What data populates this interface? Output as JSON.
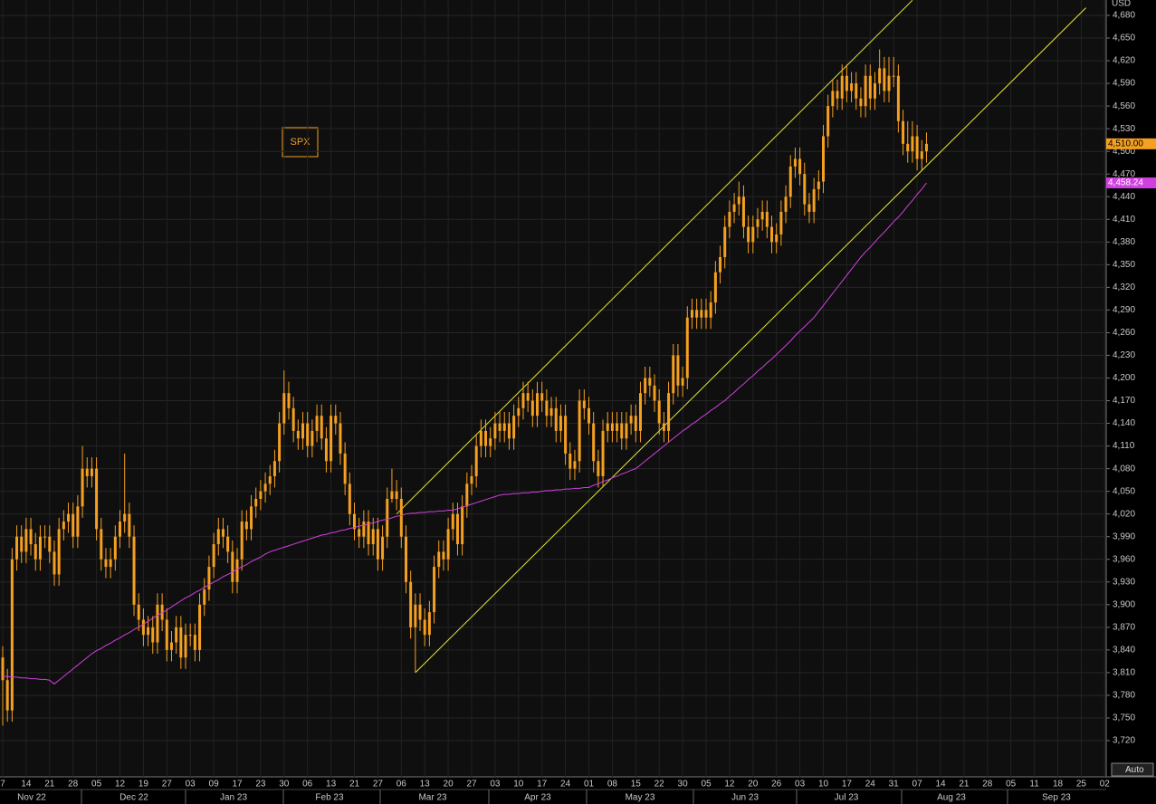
{
  "chart_data": {
    "type": "candlestick",
    "y_unit": "USD",
    "y_unit_label": "USD",
    "button": "Auto",
    "ylim": [
      3696,
      4700
    ],
    "yticks": [
      {
        "value": 3720,
        "label": "3,720"
      },
      {
        "value": 3750,
        "label": "3,750"
      },
      {
        "value": 3780,
        "label": "3,780"
      },
      {
        "value": 3810,
        "label": "3,810"
      },
      {
        "value": 3840,
        "label": "3,840"
      },
      {
        "value": 3870,
        "label": "3,870"
      },
      {
        "value": 3900,
        "label": "3,900"
      },
      {
        "value": 3930,
        "label": "3,930"
      },
      {
        "value": 3960,
        "label": "3,960"
      },
      {
        "value": 3990,
        "label": "3,990"
      },
      {
        "value": 4020,
        "label": "4,020"
      },
      {
        "value": 4050,
        "label": "4,050"
      },
      {
        "value": 4080,
        "label": "4,080"
      },
      {
        "value": 4110,
        "label": "4,110"
      },
      {
        "value": 4140,
        "label": "4,140"
      },
      {
        "value": 4170,
        "label": "4,170"
      },
      {
        "value": 4200,
        "label": "4,200"
      },
      {
        "value": 4230,
        "label": "4,230"
      },
      {
        "value": 4260,
        "label": "4,260"
      },
      {
        "value": 4290,
        "label": "4,290"
      },
      {
        "value": 4320,
        "label": "4,320"
      },
      {
        "value": 4350,
        "label": "4,350"
      },
      {
        "value": 4380,
        "label": "4,380"
      },
      {
        "value": 4410,
        "label": "4,410"
      },
      {
        "value": 4440,
        "label": "4,440"
      },
      {
        "value": 4470,
        "label": "4,470"
      },
      {
        "value": 4500,
        "label": "4,500"
      },
      {
        "value": 4530,
        "label": "4,530"
      },
      {
        "value": 4560,
        "label": "4,560"
      },
      {
        "value": 4590,
        "label": "4,590"
      },
      {
        "value": 4620,
        "label": "4,620"
      },
      {
        "value": 4650,
        "label": "4,650"
      },
      {
        "value": 4680,
        "label": "4,680"
      }
    ],
    "x_day_labels": [
      "7",
      "14",
      "21",
      "28",
      "05",
      "12",
      "19",
      "27",
      "03",
      "09",
      "17",
      "23",
      "30",
      "06",
      "13",
      "21",
      "27",
      "06",
      "13",
      "20",
      "27",
      "03",
      "10",
      "17",
      "24",
      "01",
      "08",
      "15",
      "22",
      "30",
      "05",
      "12",
      "20",
      "26",
      "03",
      "10",
      "17",
      "24",
      "31",
      "07",
      "14",
      "21",
      "28",
      "05",
      "11",
      "18",
      "25",
      "02"
    ],
    "x_month_labels": [
      "Nov 22",
      "Dec 22",
      "Jan 23",
      "Feb 23",
      "Mar 23",
      "Apr 23",
      "May 23",
      "Jun 23",
      "Jul 23",
      "Aug 23",
      "Sep 23"
    ],
    "grid": true,
    "series": [
      {
        "name": "SPX",
        "color": "#f5a020",
        "last_value_label": "4,510.00",
        "open": [
          3830,
          3800,
          3760,
          3960,
          3990,
          3970,
          4000,
          3980,
          3960,
          3990,
          3990,
          3970,
          3940,
          4000,
          4010,
          4020,
          3990,
          4030,
          4080,
          4070,
          4080,
          4000,
          3960,
          3950,
          3960,
          3990,
          4010,
          4020,
          3990,
          3900,
          3880,
          3860,
          3870,
          3850,
          3900,
          3880,
          3840,
          3850,
          3870,
          3830,
          3860,
          3860,
          3840,
          3900,
          3920,
          3950,
          3980,
          4000,
          3990,
          3970,
          3930,
          3960,
          4010,
          4000,
          4030,
          4040,
          4050,
          4060,
          4070,
          4090,
          4140,
          4180,
          4160,
          4130,
          4120,
          4140,
          4110,
          4130,
          4150,
          4120,
          4090,
          4150,
          4140,
          4100,
          4060,
          4020,
          4000,
          3990,
          4010,
          3980,
          4000,
          3960,
          3990,
          4040,
          4050,
          4040,
          3990,
          3930,
          3870,
          3900,
          3880,
          3860,
          3890,
          3950,
          3970,
          3960,
          4000,
          4020,
          3980,
          4030,
          4060,
          4070,
          4110,
          4130,
          4110,
          4120,
          4140,
          4130,
          4140,
          4120,
          4150,
          4160,
          4180,
          4170,
          4150,
          4180,
          4170,
          4150,
          4160,
          4130,
          4150,
          4100,
          4080,
          4090,
          4170,
          4160,
          4140,
          4090,
          4070,
          4130,
          4140,
          4130,
          4140,
          4120,
          4140,
          4150,
          4130,
          4180,
          4200,
          4190,
          4170,
          4140,
          4130,
          4180,
          4230,
          4190,
          4200,
          4280,
          4290,
          4280,
          4290,
          4280,
          4300,
          4340,
          4360,
          4400,
          4420,
          4430,
          4440,
          4400,
          4380,
          4400,
          4410,
          4420,
          4400,
          4380,
          4390,
          4420,
          4440,
          4480,
          4490,
          4470,
          4430,
          4420,
          4450,
          4460,
          4520,
          4560,
          4580,
          4570,
          4600,
          4580,
          4590,
          4570,
          4560,
          4600,
          4570,
          4590,
          4610,
          4580,
          4600,
          4600,
          4540,
          4510,
          4500,
          4520,
          4490,
          4500
        ],
        "high": [
          3845,
          3815,
          3975,
          4005,
          4005,
          4015,
          4015,
          3995,
          4005,
          4005,
          4005,
          3985,
          4015,
          4025,
          4035,
          4035,
          4045,
          4110,
          4095,
          4095,
          4095,
          4015,
          3975,
          3975,
          4005,
          4025,
          4100,
          4035,
          4005,
          3915,
          3895,
          3885,
          3885,
          3915,
          3915,
          3895,
          3865,
          3885,
          3885,
          3875,
          3875,
          3875,
          3915,
          3935,
          3965,
          3995,
          4015,
          4015,
          4005,
          3985,
          3975,
          4025,
          4025,
          4045,
          4055,
          4065,
          4075,
          4085,
          4105,
          4155,
          4210,
          4195,
          4175,
          4145,
          4155,
          4155,
          4145,
          4165,
          4165,
          4135,
          4165,
          4165,
          4155,
          4115,
          4075,
          4035,
          4015,
          4025,
          4025,
          4015,
          4015,
          4005,
          4055,
          4080,
          4065,
          4055,
          4005,
          3945,
          3915,
          3915,
          3895,
          3905,
          3965,
          3985,
          3985,
          4015,
          4035,
          4035,
          4045,
          4075,
          4085,
          4125,
          4145,
          4145,
          4135,
          4155,
          4155,
          4155,
          4155,
          4165,
          4175,
          4195,
          4195,
          4185,
          4195,
          4195,
          4185,
          4175,
          4175,
          4165,
          4165,
          4115,
          4105,
          4185,
          4185,
          4175,
          4155,
          4105,
          4145,
          4155,
          4155,
          4155,
          4155,
          4155,
          4165,
          4165,
          4195,
          4215,
          4215,
          4205,
          4185,
          4155,
          4195,
          4245,
          4245,
          4215,
          4295,
          4305,
          4305,
          4305,
          4305,
          4315,
          4355,
          4375,
          4415,
          4435,
          4445,
          4460,
          4455,
          4415,
          4415,
          4425,
          4435,
          4435,
          4415,
          4405,
          4435,
          4455,
          4495,
          4505,
          4505,
          4485,
          4445,
          4465,
          4475,
          4535,
          4575,
          4595,
          4595,
          4615,
          4615,
          4605,
          4605,
          4585,
          4615,
          4615,
          4605,
          4635,
          4625,
          4625,
          4625,
          4615,
          4555,
          4540,
          4540,
          4535,
          4515,
          4525
        ],
        "low": [
          3740,
          3745,
          3745,
          3945,
          3955,
          3955,
          3965,
          3945,
          3945,
          3975,
          3955,
          3925,
          3925,
          3985,
          3995,
          3975,
          3975,
          4015,
          4055,
          4055,
          3985,
          3945,
          3935,
          3935,
          3945,
          3975,
          3995,
          3975,
          3885,
          3865,
          3845,
          3845,
          3835,
          3835,
          3865,
          3825,
          3825,
          3835,
          3815,
          3815,
          3845,
          3825,
          3825,
          3885,
          3905,
          3935,
          3965,
          3975,
          3955,
          3915,
          3915,
          3945,
          3985,
          3985,
          4015,
          4025,
          4035,
          4045,
          4055,
          4075,
          4125,
          4145,
          4115,
          4105,
          4105,
          4095,
          4095,
          4115,
          4105,
          4075,
          4075,
          4125,
          4085,
          4045,
          4005,
          3985,
          3975,
          3975,
          3965,
          3965,
          3945,
          3945,
          3975,
          4035,
          4025,
          3975,
          3915,
          3855,
          3810,
          3865,
          3845,
          3845,
          3875,
          3935,
          3945,
          3945,
          3985,
          3965,
          3965,
          4015,
          4045,
          4055,
          4095,
          4095,
          4095,
          4105,
          4115,
          4115,
          4105,
          4105,
          4135,
          4145,
          4155,
          4135,
          4135,
          4155,
          4135,
          4135,
          4115,
          4115,
          4085,
          4065,
          4065,
          4075,
          4145,
          4125,
          4075,
          4055,
          4055,
          4115,
          4115,
          4115,
          4105,
          4105,
          4125,
          4115,
          4115,
          4165,
          4175,
          4155,
          4125,
          4115,
          4115,
          4165,
          4175,
          4175,
          4185,
          4265,
          4265,
          4265,
          4265,
          4265,
          4285,
          4325,
          4345,
          4385,
          4405,
          4415,
          4385,
          4365,
          4365,
          4385,
          4395,
          4385,
          4365,
          4365,
          4375,
          4405,
          4425,
          4465,
          4455,
          4415,
          4405,
          4405,
          4435,
          4445,
          4505,
          4545,
          4555,
          4555,
          4565,
          4565,
          4555,
          4545,
          4545,
          4555,
          4555,
          4575,
          4565,
          4565,
          4585,
          4525,
          4495,
          4485,
          4485,
          4475,
          4475,
          4485
        ],
        "close": [
          3800,
          3760,
          3960,
          3990,
          3970,
          4000,
          3980,
          3960,
          3990,
          3990,
          3970,
          3940,
          4000,
          4010,
          4020,
          3990,
          4030,
          4080,
          4070,
          4080,
          4000,
          3960,
          3950,
          3960,
          3990,
          4010,
          4020,
          3990,
          3900,
          3880,
          3860,
          3870,
          3850,
          3900,
          3880,
          3840,
          3850,
          3870,
          3830,
          3860,
          3860,
          3840,
          3900,
          3920,
          3950,
          3980,
          4000,
          3990,
          3970,
          3930,
          3960,
          4010,
          4000,
          4030,
          4040,
          4050,
          4060,
          4070,
          4090,
          4140,
          4180,
          4160,
          4130,
          4120,
          4140,
          4110,
          4130,
          4150,
          4120,
          4090,
          4150,
          4140,
          4100,
          4060,
          4020,
          4000,
          3990,
          4010,
          3980,
          4000,
          3960,
          3990,
          4040,
          4050,
          4040,
          3990,
          3930,
          3870,
          3900,
          3880,
          3860,
          3890,
          3950,
          3970,
          3960,
          4000,
          4020,
          3980,
          4030,
          4060,
          4070,
          4110,
          4130,
          4110,
          4120,
          4140,
          4130,
          4140,
          4120,
          4150,
          4160,
          4180,
          4170,
          4150,
          4180,
          4170,
          4150,
          4160,
          4130,
          4150,
          4100,
          4080,
          4090,
          4170,
          4160,
          4140,
          4090,
          4070,
          4130,
          4140,
          4130,
          4140,
          4120,
          4140,
          4150,
          4130,
          4180,
          4200,
          4190,
          4170,
          4140,
          4130,
          4180,
          4230,
          4190,
          4200,
          4280,
          4290,
          4280,
          4290,
          4280,
          4300,
          4340,
          4360,
          4400,
          4420,
          4430,
          4440,
          4400,
          4380,
          4400,
          4410,
          4420,
          4400,
          4380,
          4390,
          4420,
          4440,
          4480,
          4490,
          4470,
          4430,
          4420,
          4450,
          4460,
          4520,
          4560,
          4580,
          4570,
          4600,
          4580,
          4590,
          4570,
          4560,
          4600,
          4570,
          4590,
          4610,
          4580,
          4600,
          4600,
          4540,
          4510,
          4500,
          4520,
          4490,
          4500,
          4510
        ]
      },
      {
        "type": "line",
        "color": "#d040e0",
        "last_value_label": "4,458.24",
        "values": [
          3805,
          3805,
          3804,
          3804,
          3803,
          3803,
          3802,
          3802,
          3801,
          3801,
          3800,
          3795,
          3800,
          3805,
          3810,
          3815,
          3820,
          3825,
          3830,
          3835,
          3839,
          3842,
          3846,
          3849,
          3853,
          3856,
          3860,
          3863,
          3867,
          3870,
          3874,
          3878,
          3882,
          3886,
          3889,
          3893,
          3897,
          3901,
          3905,
          3909,
          3912,
          3916,
          3919,
          3923,
          3926,
          3930,
          3933,
          3937,
          3940,
          3943,
          3947,
          3950,
          3953,
          3957,
          3960,
          3963,
          3967,
          3970,
          3972,
          3974,
          3976,
          3978,
          3980,
          3982,
          3984,
          3986,
          3988,
          3990,
          3992,
          3993,
          3995,
          3996,
          3998,
          3999,
          4001,
          4002,
          4004,
          4005,
          4007,
          4008,
          4010,
          4012,
          4013,
          4015,
          4017,
          4018,
          4020,
          4021,
          4021,
          4022,
          4022,
          4023,
          4023,
          4024,
          4024,
          4025,
          4025,
          4027,
          4029,
          4031,
          4033,
          4035,
          4037,
          4039,
          4041,
          4043,
          4045,
          4046,
          4046,
          4047,
          4047,
          4048,
          4048,
          4049,
          4049,
          4050,
          4051,
          4051,
          4052,
          4052,
          4053,
          4053,
          4054,
          4054,
          4055,
          4055,
          4058,
          4060,
          4063,
          4065,
          4068,
          4070,
          4073,
          4075,
          4078,
          4080,
          4085,
          4090,
          4095,
          4100,
          4105,
          4110,
          4115,
          4120,
          4125,
          4130,
          4134,
          4139,
          4143,
          4148,
          4152,
          4157,
          4161,
          4166,
          4170,
          4176,
          4181,
          4187,
          4192,
          4198,
          4203,
          4209,
          4214,
          4220,
          4225,
          4231,
          4237,
          4243,
          4249,
          4256,
          4262,
          4268,
          4274,
          4280,
          4288,
          4296,
          4304,
          4312,
          4320,
          4328,
          4336,
          4344,
          4352,
          4360,
          4367,
          4373,
          4380,
          4387,
          4393,
          4400,
          4407,
          4413,
          4420,
          4428,
          4435,
          4443,
          4450,
          4458.24
        ]
      }
    ],
    "channel": [
      {
        "color": "#e8e830",
        "start": [
          88,
          3810
        ],
        "end": [
          231,
          4690
        ]
      },
      {
        "color": "#e8e830",
        "start": [
          84,
          4020
        ],
        "end": [
          194,
          4700
        ]
      }
    ]
  }
}
